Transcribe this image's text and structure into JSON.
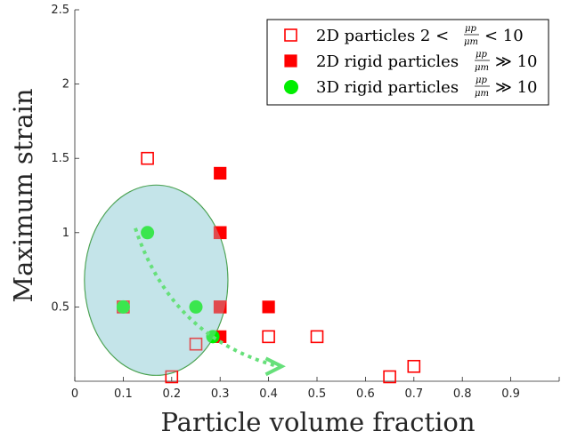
{
  "chart_data": {
    "type": "scatter",
    "xlabel": "Particle volume fraction",
    "ylabel": "Maximum strain",
    "xlim": [
      0,
      1
    ],
    "ylim": [
      0,
      2.5
    ],
    "xticks": [
      "0",
      "0.1",
      "0.2",
      "0.3",
      "0.4",
      "0.5",
      "0.6",
      "0.7",
      "0.8",
      "0.9"
    ],
    "yticks": [
      "0.5",
      "1",
      "1.5",
      "2",
      "2.5"
    ],
    "legend_position": "top-right",
    "colors": {
      "red": "#ff0000",
      "green": "#00ee00",
      "ellipse_fill": "#a8d8e0",
      "ellipse_edge": "#3c9a3c",
      "arrow": "#66e07a"
    },
    "series": [
      {
        "name": "2D particles",
        "legend_label": "2D particles 2 < μp/μm < 10",
        "marker": "open-square",
        "points": [
          [
            0.1,
            0.5
          ],
          [
            0.15,
            1.5
          ],
          [
            0.2,
            0.03
          ],
          [
            0.25,
            0.25
          ],
          [
            0.3,
            1.0
          ],
          [
            0.3,
            0.5
          ],
          [
            0.4,
            0.3
          ],
          [
            0.5,
            0.3
          ],
          [
            0.65,
            0.03
          ],
          [
            0.7,
            0.1
          ]
        ]
      },
      {
        "name": "2D rigid particles",
        "legend_label": "2D rigid particles μp/μm ≫ 10",
        "marker": "filled-square",
        "points": [
          [
            0.3,
            1.4
          ],
          [
            0.3,
            1.0
          ],
          [
            0.3,
            0.5
          ],
          [
            0.3,
            0.3
          ],
          [
            0.4,
            0.5
          ]
        ]
      },
      {
        "name": "3D rigid particles",
        "legend_label": "3D rigid particles μp/μm ≫ 10",
        "marker": "filled-circle",
        "points": [
          [
            0.15,
            1.0
          ],
          [
            0.1,
            0.5
          ],
          [
            0.25,
            0.5
          ],
          [
            0.285,
            0.3
          ]
        ]
      }
    ],
    "legend": {
      "e1_pre": "2D particles 2 <",
      "e1_post": "< 10",
      "e2_pre": "2D rigid particles",
      "e2_post": "≫ 10",
      "e3_pre": "3D rigid particles",
      "e3_post": "≫ 10",
      "frac_num": "μp",
      "frac_den": "μm"
    },
    "annotations": {
      "ellipse": {
        "cx": 0.168,
        "cy": 0.68,
        "rx": 0.148,
        "ry": 0.64
      },
      "arrow_path": [
        [
          0.125,
          1.03
        ],
        [
          0.2,
          0.53
        ],
        [
          0.42,
          0.1
        ]
      ]
    }
  }
}
